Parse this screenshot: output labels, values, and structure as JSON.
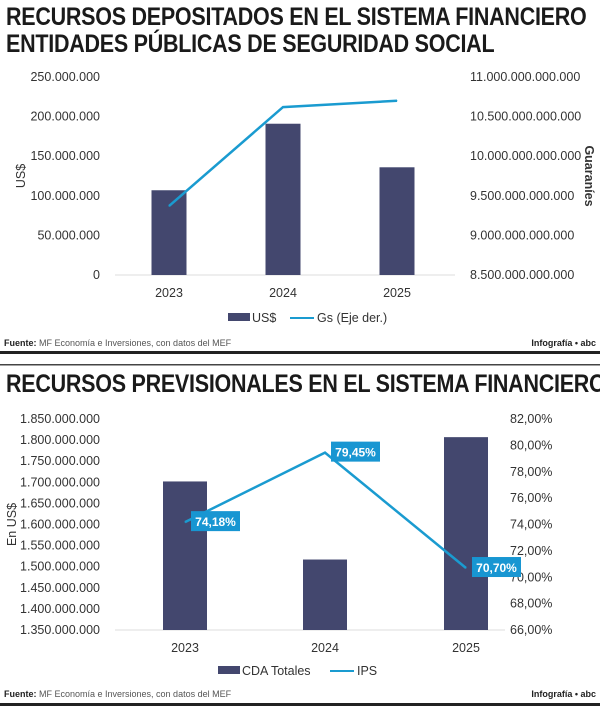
{
  "colors": {
    "bar": "#43476e",
    "line": "#1a9bd0",
    "label_bg": "#1896d2"
  },
  "footer": {
    "source_label": "Fuente:",
    "source_text": "MF Economía e Inversiones, con datos del MEF",
    "credit": "Infografía • abc"
  },
  "chart_data": [
    {
      "type": "bar+line",
      "title": "RECURSOS DEPOSITADOS EN EL SISTEMA FINANCIERO",
      "subtitle": "ENTIDADES PÚBLICAS DE SEGURIDAD SOCIAL",
      "categories": [
        "2023",
        "2024",
        "2025"
      ],
      "ylabel": "US$",
      "y2label": "Guaraníes",
      "ylim": [
        0,
        250000000
      ],
      "y2lim": [
        8500000000000,
        11000000000000
      ],
      "yticks": [
        "0",
        "50.000.000",
        "100.000.000",
        "150.000.000",
        "200.000.000",
        "250.000.000"
      ],
      "y2ticks": [
        "8.500.000.000.000",
        "9.000.000.000.000",
        "9.500.000.000.000",
        "10.000.000.000.000",
        "10.500.000.000.000",
        "11.000.000.000.000"
      ],
      "series": [
        {
          "name": "US$",
          "type": "bar",
          "axis": "left",
          "values": [
            107000000,
            191000000,
            136000000
          ]
        },
        {
          "name": "Gs (Eje der.)",
          "type": "line",
          "axis": "right",
          "values": [
            9370000000000,
            10620000000000,
            10700000000000
          ]
        }
      ],
      "legend": "bottom",
      "grid": false
    },
    {
      "type": "bar+line",
      "title": "RECURSOS PREVISIONALES EN EL SISTEMA FINANCIERO",
      "categories": [
        "2023",
        "2024",
        "2025"
      ],
      "ylabel": "En US$",
      "ylim": [
        1350000000,
        1850000000
      ],
      "y2lim": [
        66,
        82
      ],
      "yticks": [
        "1.350.000.000",
        "1.400.000.000",
        "1.450.000.000",
        "1.500.000.000",
        "1.550.000.000",
        "1.600.000.000",
        "1.650.000.000",
        "1.700.000.000",
        "1.750.000.000",
        "1.800.000.000",
        "1.850.000.000"
      ],
      "y2ticks": [
        "66,00%",
        "68,00%",
        "70,00%",
        "72,00%",
        "74,00%",
        "76,00%",
        "78,00%",
        "80,00%",
        "82,00%"
      ],
      "series": [
        {
          "name": "CDA Totales",
          "type": "bar",
          "axis": "left",
          "values": [
            1702000000,
            1517000000,
            1807000000
          ]
        },
        {
          "name": "IPS",
          "type": "line",
          "axis": "right",
          "values": [
            74.18,
            79.45,
            70.7
          ],
          "labels": [
            "74,18%",
            "79,45%",
            "70,70%"
          ]
        }
      ],
      "legend": "bottom",
      "grid": false
    }
  ]
}
